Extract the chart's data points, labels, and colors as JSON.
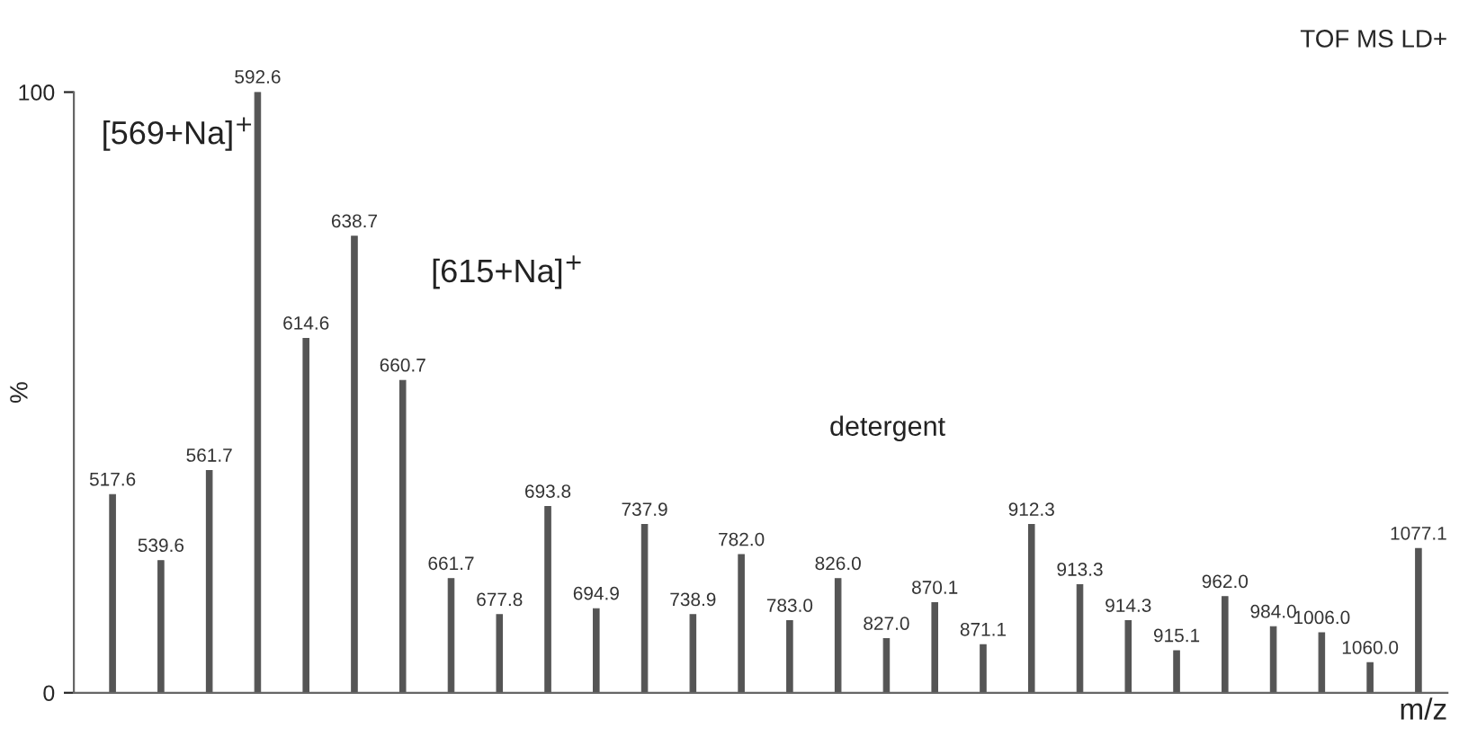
{
  "chart_data": {
    "type": "bar",
    "title": "TOF MS LD+",
    "xlabel": "m/z",
    "ylabel": "%",
    "categories": [
      "517.6",
      "539.6",
      "561.7",
      "592.6",
      "614.6",
      "638.7",
      "660.7",
      "661.7",
      "677.8",
      "693.8",
      "694.9",
      "737.9",
      "738.9",
      "782.0",
      "783.0",
      "826.0",
      "827.0",
      "870.1",
      "871.1",
      "912.3",
      "913.3",
      "914.3",
      "915.1",
      "962.0",
      "984.0",
      "1006.0",
      "1060.0",
      "1077.1"
    ],
    "values": [
      33,
      22,
      37,
      100,
      59,
      76,
      52,
      19,
      13,
      31,
      14,
      28,
      13,
      23,
      12,
      19,
      9,
      15,
      8,
      28,
      18,
      12,
      7,
      16,
      11,
      10,
      5,
      24
    ],
    "color": "#555555",
    "ylim": [
      0,
      100
    ],
    "yticks": [
      0,
      100
    ],
    "tick_labels": "y",
    "grid": false,
    "legend": false,
    "annotations": [
      "[569+Na]$^{+}$",
      "[615+Na]$^{+}$",
      "detergent"
    ]
  }
}
